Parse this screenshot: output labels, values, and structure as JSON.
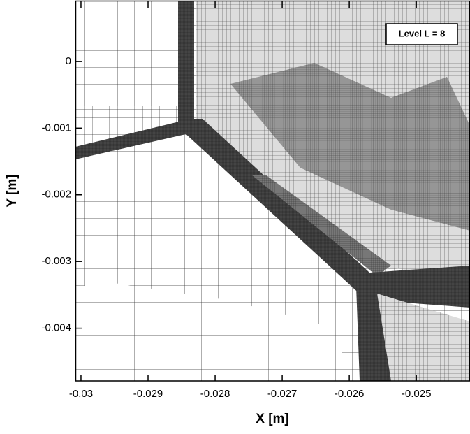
{
  "chart_data": {
    "type": "mesh",
    "x_label": "X [m]",
    "y_label": "Y [m]",
    "annotation": "Level L = 8",
    "xlim": [
      -0.030083,
      -0.0242
    ],
    "xticks": [
      -0.03,
      -0.029,
      -0.028,
      -0.027,
      -0.026,
      -0.025
    ],
    "ylim": [
      -0.00479,
      0.0009
    ],
    "yticks": [
      0,
      -0.001,
      -0.002,
      -0.003,
      -0.004
    ]
  }
}
